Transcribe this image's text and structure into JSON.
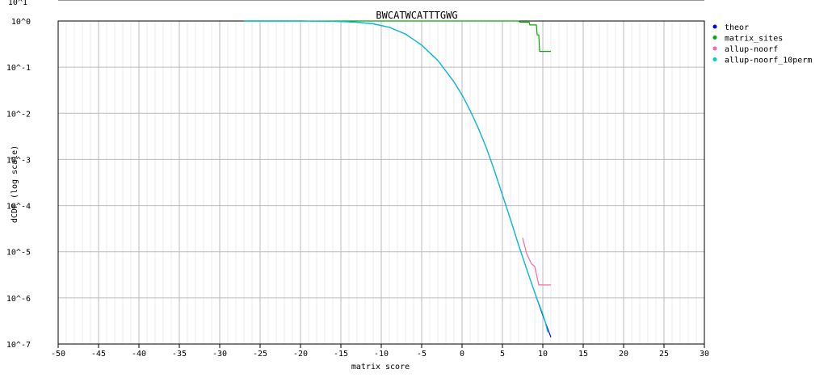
{
  "chart_data": {
    "type": "line",
    "title": "BWCATWCATTTGWG",
    "xlabel": "matrix score",
    "ylabel": "dCDF (log scale)",
    "xlim": [
      -50,
      30
    ],
    "ylim": [
      1e-07,
      1
    ],
    "y_scale": "log",
    "grid": true,
    "legend_position": "top-right",
    "x_ticks": [
      -50,
      -45,
      -40,
      -35,
      -30,
      -25,
      -20,
      -15,
      -10,
      -5,
      0,
      5,
      10,
      15,
      20,
      25,
      30
    ],
    "y_ticks": [
      {
        "label": "10^0",
        "value": 1
      },
      {
        "label": "10^-1",
        "value": 0.1
      },
      {
        "label": "10^-2",
        "value": 0.01
      },
      {
        "label": "10^-3",
        "value": 0.001
      },
      {
        "label": "10^-4",
        "value": 0.0001
      },
      {
        "label": "10^-5",
        "value": 1e-05
      },
      {
        "label": "10^-6",
        "value": 1e-06
      },
      {
        "label": "10^-7",
        "value": 1e-07
      }
    ],
    "y_top_label": "10^1",
    "series": [
      {
        "name": "theor",
        "color": "#0000ff",
        "x": [
          -27,
          -20,
          -17,
          -15,
          -13,
          -11,
          -9,
          -7,
          -5,
          -3,
          -1,
          0,
          1,
          2,
          3,
          4,
          5,
          6,
          7,
          8,
          9,
          10,
          10.5,
          11
        ],
        "y": [
          1,
          1,
          0.99,
          0.975,
          0.94,
          0.87,
          0.73,
          0.52,
          0.3,
          0.14,
          0.048,
          0.025,
          0.0115,
          0.0048,
          0.0018,
          0.00058,
          0.00017,
          5e-05,
          1.4e-05,
          4.2e-06,
          1.3e-06,
          4.2e-07,
          2.4e-07,
          1.4e-07
        ]
      },
      {
        "name": "matrix_sites",
        "color": "#00aa00",
        "x": [
          -27,
          -17,
          -15,
          -10,
          -5,
          0,
          5,
          7,
          7.2,
          8.3,
          8.4,
          9.2,
          9.3,
          9.5,
          9.6,
          11
        ],
        "y": [
          1,
          1,
          1,
          1,
          1,
          1,
          1,
          1,
          0.94,
          0.94,
          0.82,
          0.82,
          0.5,
          0.5,
          0.22,
          0.22
        ]
      },
      {
        "name": "allup-noorf",
        "color": "#ff6699",
        "x": [
          7.5,
          8,
          8.6,
          9,
          9.5,
          11
        ],
        "y": [
          2e-05,
          9e-06,
          5.5e-06,
          4.8e-06,
          1.9e-06,
          1.9e-06
        ]
      },
      {
        "name": "allup-noorf_10perm",
        "color": "#00cccc",
        "x": [
          -27,
          -20,
          -17,
          -15,
          -13,
          -11,
          -9,
          -7,
          -5,
          -3,
          -1,
          0,
          1,
          2,
          3,
          4,
          5,
          6,
          7,
          8,
          9,
          10,
          10.3,
          10.6
        ],
        "y": [
          1,
          1,
          0.99,
          0.975,
          0.94,
          0.87,
          0.73,
          0.52,
          0.3,
          0.14,
          0.048,
          0.025,
          0.0115,
          0.0048,
          0.0018,
          0.00058,
          0.00017,
          5e-05,
          1.4e-05,
          4.2e-06,
          1.3e-06,
          4.5e-07,
          3e-07,
          1.8e-07
        ]
      }
    ]
  }
}
